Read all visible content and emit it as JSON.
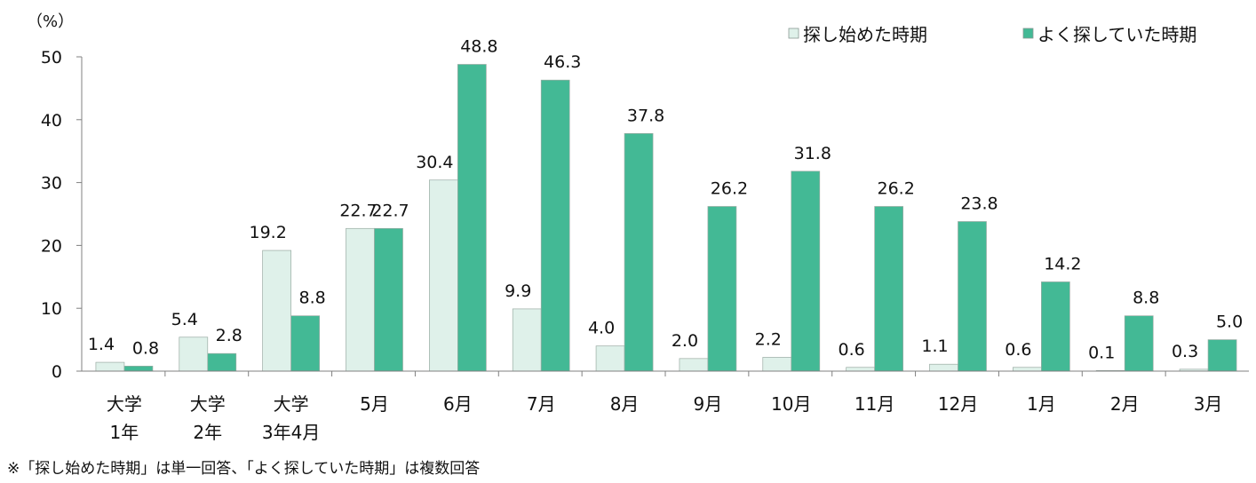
{
  "chart_data": {
    "type": "bar",
    "y_unit": "（%）",
    "ylim": [
      0,
      50
    ],
    "y_ticks": [
      0,
      10,
      20,
      30,
      40,
      50
    ],
    "grid": false,
    "legend_position": "top-right",
    "categories": [
      [
        "大学",
        "1年"
      ],
      [
        "大学",
        "2年"
      ],
      [
        "大学",
        "3年4月"
      ],
      [
        "5月"
      ],
      [
        "6月"
      ],
      [
        "7月"
      ],
      [
        "8月"
      ],
      [
        "9月"
      ],
      [
        "10月"
      ],
      [
        "11月"
      ],
      [
        "12月"
      ],
      [
        "1月"
      ],
      [
        "2月"
      ],
      [
        "3月"
      ]
    ],
    "series": [
      {
        "name": "探し始めた時期",
        "color": "#dff1ea",
        "values": [
          1.4,
          5.4,
          19.2,
          22.7,
          30.4,
          9.9,
          4.0,
          2.0,
          2.2,
          0.6,
          1.1,
          0.6,
          0.1,
          0.3
        ]
      },
      {
        "name": "よく探していた時期",
        "color": "#43b995",
        "values": [
          0.8,
          2.8,
          8.8,
          22.7,
          48.8,
          46.3,
          37.8,
          26.2,
          31.8,
          26.2,
          23.8,
          14.2,
          8.8,
          5.0
        ]
      }
    ],
    "footnote": "※「探し始めた時期」は単一回答、「よく探していた時期」は複数回答"
  }
}
